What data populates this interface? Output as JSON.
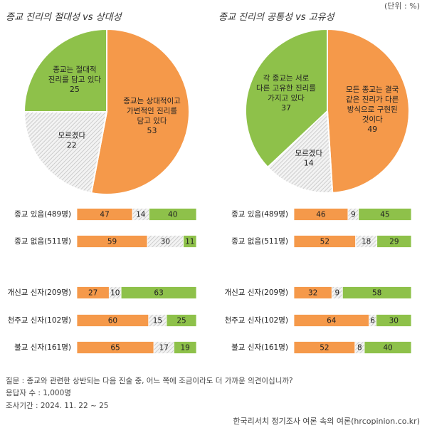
{
  "unit_label": "(단위 : %)",
  "colors": {
    "orange": "#f5994a",
    "green": "#8ec14a",
    "gray_hatch": "#c9c9c9"
  },
  "chart_data": [
    {
      "type": "pie",
      "title": "종교 진리의 절대성 vs 상대성",
      "slices": [
        {
          "label": "종교는 상대적이고 가변적인 진리를 담고 있다",
          "lines": [
            "종교는 상대적이고",
            "가변적인 진리를",
            "담고 있다"
          ],
          "value": 53,
          "color": "orange"
        },
        {
          "label": "모르겠다",
          "lines": [
            "모르겠다"
          ],
          "value": 22,
          "color": "gray"
        },
        {
          "label": "종교는 절대적 진리를 담고 있다",
          "lines": [
            "종교는 절대적",
            "진리를 담고 있다"
          ],
          "value": 25,
          "color": "green"
        }
      ]
    },
    {
      "type": "pie",
      "title": "종교 진리의 공통성 vs 고유성",
      "slices": [
        {
          "label": "모든 종교는 결국 같은 진리가 다른 방식으로 구현된 것이다",
          "lines": [
            "모든 종교는 결국",
            "같은 진리가 다른",
            "방식으로 구현된",
            "것이다"
          ],
          "value": 49,
          "color": "orange"
        },
        {
          "label": "모르겠다",
          "lines": [
            "모르겠다"
          ],
          "value": 14,
          "color": "gray"
        },
        {
          "label": "각 종교는 서로 다른 고유한 진리를 가지고 있다",
          "lines": [
            "각 종교는 서로",
            "다른 고유한 진리를",
            "가지고 있다"
          ],
          "value": 37,
          "color": "green"
        }
      ]
    },
    {
      "type": "bar",
      "orientation": "horizontal-stacked",
      "categories": [
        "종교 있음(489명)",
        "종교 없음(511명)",
        "개신교 신자(209명)",
        "천주교 신자(102명)",
        "불교 신자(161명)"
      ],
      "series": [
        {
          "values": [
            47,
            59,
            27,
            60,
            65
          ],
          "color": "orange"
        },
        {
          "values": [
            14,
            30,
            10,
            15,
            17
          ],
          "color": "gray"
        },
        {
          "values": [
            40,
            11,
            63,
            25,
            19
          ],
          "color": "green"
        }
      ]
    },
    {
      "type": "bar",
      "orientation": "horizontal-stacked",
      "categories": [
        "종교 있음(489명)",
        "종교 없음(511명)",
        "개신교 신자(209명)",
        "천주교 신자(102명)",
        "불교 신자(161명)"
      ],
      "series": [
        {
          "values": [
            46,
            52,
            32,
            64,
            52
          ],
          "color": "orange"
        },
        {
          "values": [
            9,
            18,
            9,
            6,
            8
          ],
          "color": "gray"
        },
        {
          "values": [
            45,
            29,
            58,
            30,
            40
          ],
          "color": "green"
        }
      ]
    }
  ],
  "footer": {
    "question": "질문 : 종교와 관련한 상반되는 다음 진술 중, 어느 쪽에 조금이라도 더 가까운 의견이십니까?",
    "respondents": "응답자 수 : 1,000명",
    "period": "조사기간 : 2024. 11. 22 ~ 25",
    "source": "한국리서치 정기조사 여론 속의 여론(hrcopinion.co.kr)"
  }
}
